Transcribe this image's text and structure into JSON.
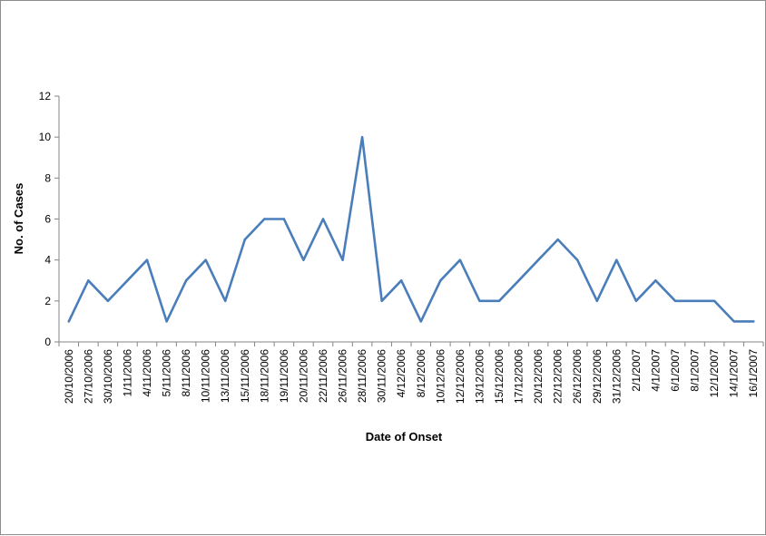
{
  "chart_data": {
    "type": "line",
    "title": "",
    "xlabel": "Date of Onset",
    "ylabel": "No. of Cases",
    "ylim": [
      0,
      12
    ],
    "yticks": [
      "0",
      "2",
      "4",
      "6",
      "8",
      "10",
      "12"
    ],
    "grid": false,
    "legend": "none",
    "x": [
      "20/10/2006",
      "27/10/2006",
      "30/10/2006",
      "1/11/2006",
      "4/11/2006",
      "5/11/2006",
      "8/11/2006",
      "10/11/2006",
      "13/11/2006",
      "15/11/2006",
      "18/11/2006",
      "19/11/2006",
      "20/11/2006",
      "22/11/2006",
      "26/11/2006",
      "28/11/2006",
      "30/11/2006",
      "4/12/2006",
      "8/12/2006",
      "10/12/2006",
      "12/12/2006",
      "13/12/2006",
      "15/12/2006",
      "17/12/2006",
      "20/12/2006",
      "22/12/2006",
      "26/12/2006",
      "29/12/2006",
      "31/12/2006",
      "2/1/2007",
      "4/1/2007",
      "6/1/2007",
      "8/1/2007",
      "12/1/2007",
      "14/1/2007",
      "16/1/2007"
    ],
    "series": [
      {
        "values": [
          1,
          3,
          2,
          3,
          4,
          1,
          3,
          4,
          2,
          5,
          6,
          6,
          4,
          6,
          4,
          10,
          2,
          3,
          1,
          3,
          4,
          2,
          2,
          3,
          4,
          5,
          4,
          2,
          4,
          2,
          3,
          2,
          2,
          2,
          1,
          1
        ]
      }
    ],
    "colors": {
      "line": "#4a7ebb",
      "axis": "#868686"
    }
  }
}
